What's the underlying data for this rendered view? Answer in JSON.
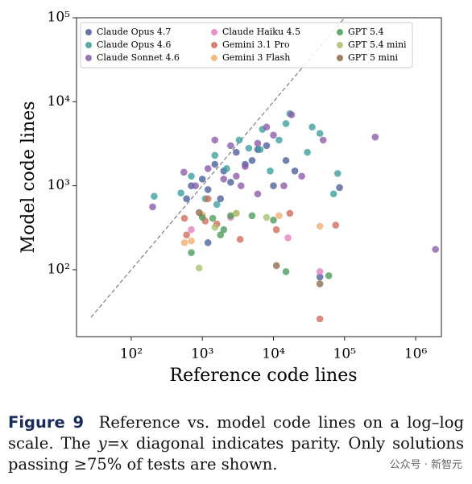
{
  "chart_data": {
    "type": "scatter",
    "x_label": "Reference code lines",
    "y_label": "Model code lines",
    "xlog": true,
    "ylog": true,
    "diagonal": true,
    "legend": "upper-left",
    "xlim": [
      17,
      2300000
    ],
    "ylim": [
      16,
      100000
    ],
    "xticks": [
      {
        "value": 100,
        "label": "10²"
      },
      {
        "value": 1000,
        "label": "10³"
      },
      {
        "value": 10000,
        "label": "10⁴"
      },
      {
        "value": 100000,
        "label": "10⁵"
      },
      {
        "value": 1000000,
        "label": "10⁶"
      }
    ],
    "yticks": [
      {
        "value": 100,
        "label": "10²"
      },
      {
        "value": 1000,
        "label": "10³"
      },
      {
        "value": 10000,
        "label": "10⁴"
      },
      {
        "value": 100000,
        "label": "10⁵"
      }
    ],
    "series": [
      {
        "name": "Claude Opus 4.7",
        "color": "#4a5f9a",
        "x": [
          700,
          1000,
          1500,
          2000,
          3000,
          4000,
          5000,
          6000,
          8000,
          1200,
          2500,
          10000,
          15000,
          20000,
          45000,
          85000,
          1800,
          600,
          1200
        ],
        "values": [
          1000,
          1200,
          1800,
          1500,
          2500,
          1800,
          2000,
          2700,
          3000,
          900,
          1100,
          1000,
          2000,
          1500,
          82,
          950,
          700,
          700,
          210
        ]
      },
      {
        "name": "Claude Opus 4.6",
        "color": "#3a9e9e",
        "x": [
          210,
          500,
          700,
          1100,
          1600,
          2200,
          3300,
          4500,
          6500,
          7000,
          12000,
          15000,
          17000,
          30000,
          35000,
          45000,
          70000,
          80000,
          9000,
          1500
        ],
        "values": [
          750,
          820,
          1300,
          700,
          600,
          1600,
          3500,
          2800,
          2700,
          4700,
          3500,
          5500,
          7200,
          2500,
          5000,
          4200,
          800,
          1400,
          1500,
          2300
        ]
      },
      {
        "name": "Claude Sonnet 4.6",
        "color": "#8a5aa8",
        "x": [
          200,
          550,
          800,
          1200,
          1500,
          2500,
          3000,
          4000,
          6000,
          8000,
          10000,
          14000,
          18000,
          25000,
          50000,
          270000,
          1900000,
          6000,
          3500,
          2000
        ],
        "values": [
          560,
          1450,
          1000,
          1600,
          3500,
          3000,
          1300,
          1700,
          3200,
          5000,
          4000,
          1000,
          7000,
          1300,
          3500,
          3800,
          175,
          800,
          1000,
          1200
        ]
      },
      {
        "name": "Claude Haiku 4.5",
        "color": "#e07fc0",
        "x": [
          16000,
          45000,
          700,
          2500
        ],
        "values": [
          240,
          95,
          300,
          420
        ]
      },
      {
        "name": "Gemini 3.1 Pro",
        "color": "#d06a5a",
        "x": [
          560,
          600,
          1100,
          1200,
          3400,
          11000,
          17000,
          45000,
          75000,
          1600
        ],
        "values": [
          410,
          260,
          380,
          700,
          230,
          300,
          470,
          26,
          340,
          350
        ]
      },
      {
        "name": "Gemini 3 Flash",
        "color": "#f0b070",
        "x": [
          560,
          700,
          3000,
          12000,
          45000,
          1000
        ],
        "values": [
          210,
          220,
          470,
          440,
          330,
          450
        ]
      },
      {
        "name": "GPT 5.4",
        "color": "#4a9a5a",
        "x": [
          700,
          1000,
          1400,
          2000,
          2500,
          5000,
          10000,
          15000,
          60000,
          1800
        ],
        "values": [
          160,
          420,
          410,
          300,
          440,
          440,
          390,
          95,
          85,
          260
        ]
      },
      {
        "name": "GPT 5.4 mini",
        "color": "#a8c070",
        "x": [
          900,
          1500,
          3000,
          8000
        ],
        "values": [
          105,
          320,
          470,
          420
        ]
      },
      {
        "name": "GPT 5 mini",
        "color": "#8a6a4a",
        "x": [
          900,
          11000,
          45000
        ],
        "values": [
          480,
          112,
          68
        ]
      }
    ]
  },
  "caption": {
    "label": "Figure 9",
    "text_before": "Reference vs. model code lines on a log–log scale. The",
    "math": "y=x",
    "text_after": "diagonal indicates parity. Only solutions passing ≥75% of tests are shown."
  },
  "watermark": "公众号 · 新智元"
}
